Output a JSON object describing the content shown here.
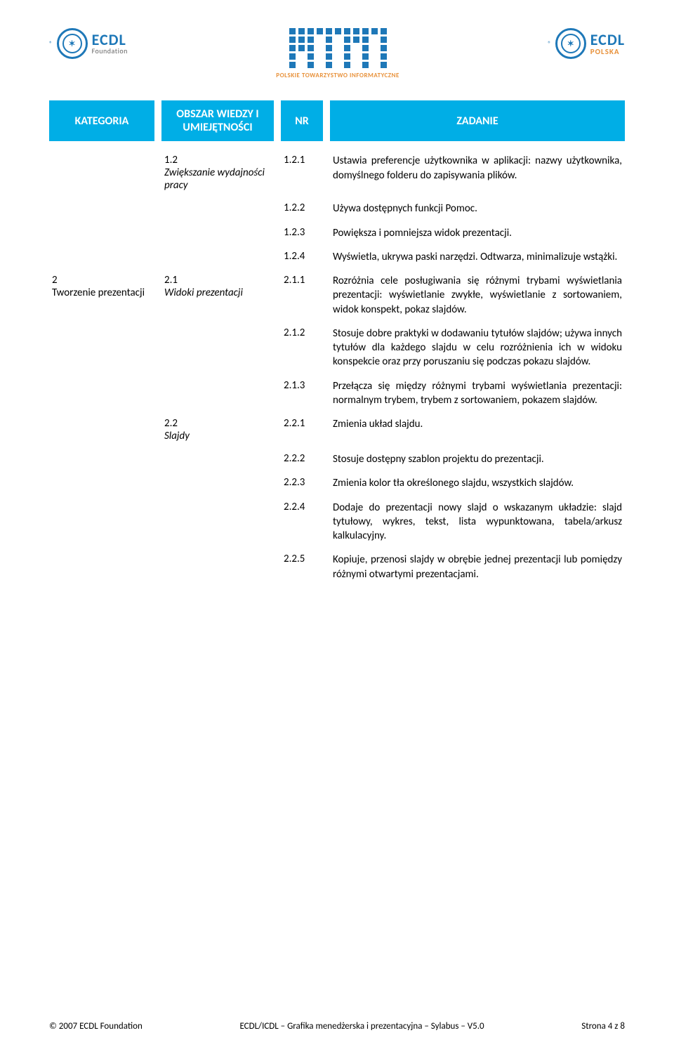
{
  "colors": {
    "header_bg": "#00aee6",
    "header_text": "#ffffff",
    "brand_blue": "#1e78b8",
    "brand_orange": "#e8913a",
    "body_text": "#000000",
    "background": "#ffffff"
  },
  "logos": {
    "ecdl_main": "ECDL",
    "ecdl_left_sub": "Foundation",
    "ecdl_right_sub": "POLSKA",
    "pti_caption": "POLSKIE TOWARZYSTWO INFORMATYCZNE",
    "reg_mark": "®"
  },
  "headers": {
    "category": "KATEGORIA",
    "area": "OBSZAR WIEDZY I UMIEJĘTNOŚCI",
    "nr": "NR",
    "task": "ZADANIE"
  },
  "rows": [
    {
      "cat": "",
      "cat_label": "",
      "area_num": "1.2",
      "area_label": "Zwiększanie wydajności pracy",
      "nr": "1.2.1",
      "task": "Ustawia preferencje użytkownika w aplikacji: nazwy użytkownika, domyślnego folderu do zapisywania plików."
    },
    {
      "cat": "",
      "cat_label": "",
      "area_num": "",
      "area_label": "",
      "nr": "1.2.2",
      "task": "Używa dostępnych funkcji Pomoc."
    },
    {
      "cat": "",
      "cat_label": "",
      "area_num": "",
      "area_label": "",
      "nr": "1.2.3",
      "task": "Powiększa i pomniejsza widok prezentacji."
    },
    {
      "cat": "",
      "cat_label": "",
      "area_num": "",
      "area_label": "",
      "nr": "1.2.4",
      "task": "Wyświetla, ukrywa paski narzędzi. Odtwarza, minimalizuje wstążki."
    },
    {
      "cat": "2",
      "cat_label": "Tworzenie prezentacji",
      "area_num": "2.1",
      "area_label": "Widoki prezentacji",
      "nr": "2.1.1",
      "task": "Rozróżnia cele posługiwania się różnymi trybami wyświetlania prezentacji: wyświetlanie zwykłe, wyświetlanie z sortowaniem, widok konspekt, pokaz slajdów."
    },
    {
      "cat": "",
      "cat_label": "",
      "area_num": "",
      "area_label": "",
      "nr": "2.1.2",
      "task": "Stosuje dobre praktyki w dodawaniu tytułów slajdów; używa innych tytułów dla każdego slajdu w celu rozróżnienia ich w widoku konspekcie oraz przy poruszaniu się podczas pokazu slajdów."
    },
    {
      "cat": "",
      "cat_label": "",
      "area_num": "",
      "area_label": "",
      "nr": "2.1.3",
      "task": "Przełącza się między różnymi trybami wyświetlania prezentacji: normalnym trybem, trybem z sortowaniem, pokazem slajdów."
    },
    {
      "cat": "",
      "cat_label": "",
      "area_num": "2.2",
      "area_label": "Slajdy",
      "nr": "2.2.1",
      "task": "Zmienia układ slajdu."
    },
    {
      "cat": "",
      "cat_label": "",
      "area_num": "",
      "area_label": "",
      "nr": "2.2.2",
      "task": "Stosuje dostępny szablon projektu do prezentacji."
    },
    {
      "cat": "",
      "cat_label": "",
      "area_num": "",
      "area_label": "",
      "nr": "2.2.3",
      "task": "Zmienia kolor tła określonego slajdu, wszystkich slajdów."
    },
    {
      "cat": "",
      "cat_label": "",
      "area_num": "",
      "area_label": "",
      "nr": "2.2.4",
      "task": "Dodaje do prezentacji nowy slajd o wskazanym układzie: slajd tytułowy, wykres, tekst, lista wypunktowana, tabela/arkusz kalkulacyjny."
    },
    {
      "cat": "",
      "cat_label": "",
      "area_num": "",
      "area_label": "",
      "nr": "2.2.5",
      "task": "Kopiuje, przenosi slajdy w obrębie jednej prezentacji lub pomiędzy różnymi otwartymi prezentacjami."
    }
  ],
  "footer": {
    "left": "© 2007 ECDL Foundation",
    "center": "ECDL/ICDL – Grafika menedżerska i prezentacyjna – Sylabus – V5.0",
    "right": "Strona 4 z 8"
  }
}
